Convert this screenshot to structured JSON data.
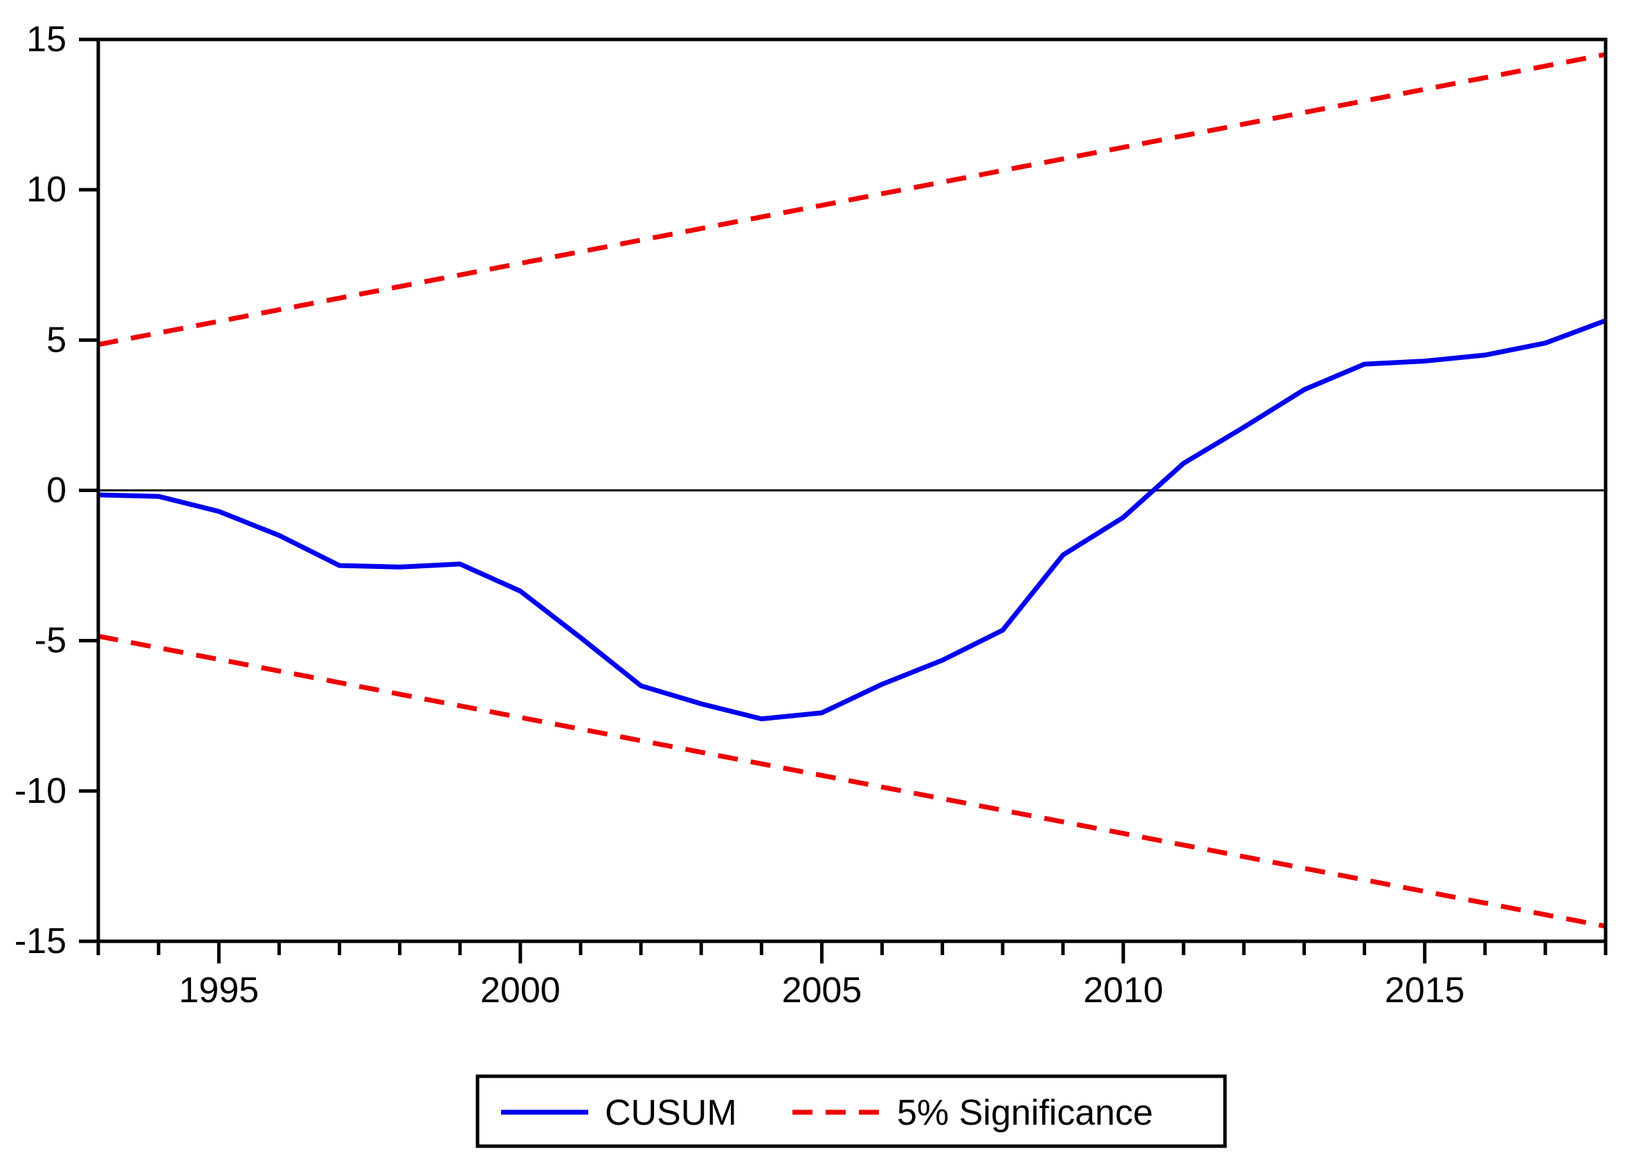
{
  "chart_data": {
    "type": "line",
    "title": "",
    "xlabel": "",
    "ylabel": "",
    "xlim": [
      1993,
      2018
    ],
    "ylim": [
      -15,
      15
    ],
    "grid": false,
    "zero_line": true,
    "legend_position": "bottom-center",
    "x": [
      1993,
      1994,
      1995,
      1996,
      1997,
      1998,
      1999,
      2000,
      2001,
      2002,
      2003,
      2004,
      2005,
      2006,
      2007,
      2008,
      2009,
      2010,
      2011,
      2012,
      2013,
      2014,
      2015,
      2016,
      2017,
      2018
    ],
    "series": [
      {
        "name": "CUSUM",
        "color": "#0000ee",
        "style": "solid",
        "values": [
          -0.15,
          -0.2,
          -0.7,
          -1.5,
          -2.5,
          -2.55,
          -2.45,
          -3.35,
          -4.9,
          -6.5,
          -7.1,
          -7.6,
          -7.4,
          -6.45,
          -5.65,
          -4.65,
          -2.15,
          -0.9,
          0.9,
          2.1,
          3.35,
          4.2,
          4.3,
          4.5,
          4.9,
          5.65
        ]
      },
      {
        "name": "5% Significance upper bound",
        "color": "#ee0000",
        "style": "dashed",
        "x": [
          1993,
          2018
        ],
        "values": [
          4.85,
          14.5
        ]
      },
      {
        "name": "5% Significance lower bound",
        "color": "#ee0000",
        "style": "dashed",
        "x": [
          1993,
          2018
        ],
        "values": [
          -4.85,
          -14.5
        ]
      }
    ],
    "y_ticks": [
      -15,
      -10,
      -5,
      0,
      5,
      10,
      15
    ],
    "x_labeled_ticks": [
      1995,
      2000,
      2005,
      2010,
      2015
    ],
    "x_minor_tick_every": 1
  },
  "legend": {
    "cusum_label": "CUSUM",
    "significance_label": "5% Significance"
  },
  "colors": {
    "cusum": "#0000ee",
    "significance": "#ee0000",
    "axis": "#000000",
    "background": "#ffffff"
  }
}
